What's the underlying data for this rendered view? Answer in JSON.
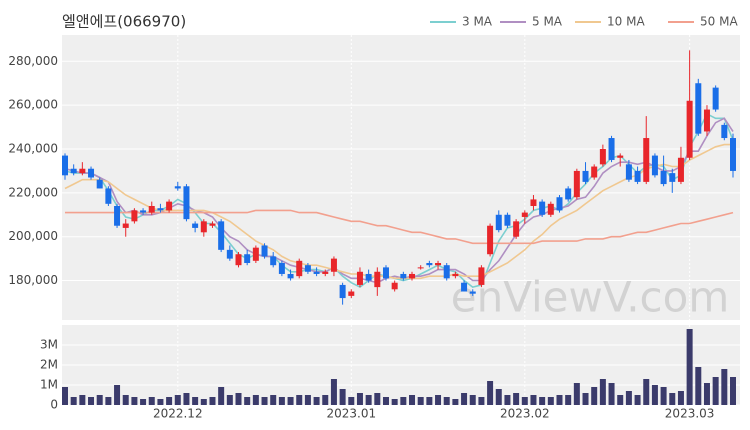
{
  "chart_data": {
    "type": "candlestick",
    "title": "엘앤에프(066970)",
    "watermark": "enViewV.com",
    "up_color": "#e8262b",
    "down_color": "#1a6ee8",
    "volume_color": "#3b3b6b",
    "grid": true,
    "categories": [
      null,
      null,
      null,
      null,
      null,
      null,
      null,
      null,
      null,
      null,
      null,
      null,
      null,
      "2022.12",
      null,
      null,
      null,
      null,
      null,
      null,
      null,
      null,
      null,
      null,
      null,
      null,
      null,
      null,
      null,
      null,
      null,
      null,
      null,
      "2023.01",
      null,
      null,
      null,
      null,
      null,
      null,
      null,
      null,
      null,
      null,
      null,
      null,
      null,
      null,
      null,
      null,
      null,
      null,
      null,
      "2023.02",
      null,
      null,
      null,
      null,
      null,
      null,
      null,
      null,
      null,
      null,
      null,
      null,
      null,
      null,
      null,
      null,
      null,
      null,
      "2023.03",
      null,
      null,
      null,
      null,
      null
    ],
    "open": [
      237000,
      231000,
      229000,
      231000,
      226000,
      222000,
      214000,
      204000,
      207000,
      212000,
      211000,
      213000,
      212000,
      223000,
      223000,
      206000,
      202000,
      205000,
      207000,
      194000,
      187000,
      192000,
      189000,
      196000,
      191000,
      188000,
      183000,
      182000,
      187000,
      184000,
      183000,
      184000,
      178000,
      173000,
      178000,
      183000,
      177000,
      186000,
      176000,
      183000,
      181000,
      186000,
      188000,
      187000,
      187000,
      182000,
      179000,
      175000,
      178000,
      192000,
      210000,
      210000,
      200000,
      209000,
      214000,
      216000,
      210000,
      218000,
      222000,
      218000,
      230000,
      227000,
      233000,
      245000,
      236000,
      233000,
      230000,
      225000,
      237000,
      230000,
      229000,
      225000,
      236000,
      270000,
      248000,
      268000,
      251000,
      245000
    ],
    "high": [
      238000,
      233000,
      234000,
      232000,
      227000,
      223000,
      215000,
      208000,
      213000,
      213000,
      216000,
      215000,
      217000,
      225000,
      224000,
      207000,
      208000,
      207000,
      208000,
      196000,
      193000,
      194000,
      196000,
      197000,
      193000,
      189000,
      185000,
      190000,
      188000,
      186000,
      185000,
      191000,
      179000,
      176000,
      186000,
      185000,
      186000,
      187000,
      180000,
      184000,
      184000,
      187000,
      189000,
      189000,
      188000,
      184000,
      180000,
      176000,
      187000,
      206000,
      212000,
      211000,
      208000,
      212000,
      219000,
      217000,
      216000,
      219000,
      223000,
      231000,
      234000,
      233000,
      242000,
      246000,
      238000,
      235000,
      232000,
      255000,
      238000,
      237000,
      231000,
      241000,
      285000,
      272000,
      260000,
      269000,
      252000,
      247000
    ],
    "low": [
      226000,
      228000,
      228000,
      226000,
      222000,
      214000,
      204000,
      200000,
      206000,
      210000,
      210000,
      211000,
      211000,
      221000,
      207000,
      202000,
      200000,
      204000,
      193000,
      189000,
      186000,
      187000,
      188000,
      190000,
      186000,
      182000,
      180000,
      181000,
      183000,
      182000,
      182000,
      182000,
      169000,
      172000,
      177000,
      179000,
      173000,
      180000,
      175000,
      180000,
      180000,
      185000,
      186000,
      185000,
      180000,
      181000,
      175000,
      173000,
      177000,
      191000,
      202000,
      204000,
      199000,
      206000,
      212000,
      209000,
      209000,
      211000,
      216000,
      217000,
      224000,
      226000,
      232000,
      234000,
      232000,
      225000,
      224000,
      224000,
      227000,
      223000,
      220000,
      224000,
      235000,
      246000,
      246000,
      257000,
      244000,
      227000
    ],
    "close": [
      228000,
      229000,
      231000,
      227000,
      222000,
      215000,
      205000,
      206000,
      212000,
      211000,
      214000,
      212000,
      216000,
      222000,
      208000,
      204000,
      207000,
      206000,
      194000,
      190000,
      192000,
      188000,
      195000,
      191000,
      187000,
      183000,
      181000,
      189000,
      184000,
      183000,
      184000,
      190000,
      172000,
      175000,
      184000,
      180000,
      184000,
      181000,
      179000,
      181000,
      183000,
      186000,
      187000,
      188000,
      181000,
      183000,
      175000,
      174000,
      186000,
      205000,
      203000,
      205000,
      207000,
      211000,
      217000,
      210000,
      215000,
      212000,
      217000,
      230000,
      225000,
      232000,
      240000,
      235000,
      237000,
      226000,
      225000,
      245000,
      228000,
      224000,
      225000,
      236000,
      262000,
      247000,
      258000,
      258000,
      245000,
      230000
    ],
    "volume": [
      900000,
      400000,
      500000,
      400000,
      500000,
      400000,
      1000000,
      500000,
      400000,
      300000,
      400000,
      300000,
      400000,
      500000,
      600000,
      400000,
      300000,
      400000,
      900000,
      500000,
      600000,
      400000,
      500000,
      400000,
      500000,
      400000,
      400000,
      500000,
      500000,
      400000,
      500000,
      1300000,
      800000,
      400000,
      600000,
      500000,
      600000,
      400000,
      300000,
      400000,
      500000,
      400000,
      400000,
      500000,
      400000,
      300000,
      600000,
      500000,
      400000,
      1200000,
      800000,
      500000,
      600000,
      400000,
      500000,
      400000,
      400000,
      500000,
      500000,
      1100000,
      600000,
      900000,
      1300000,
      1100000,
      500000,
      700000,
      500000,
      1300000,
      1000000,
      900000,
      600000,
      700000,
      3800000,
      1900000,
      1100000,
      1400000,
      1800000,
      1400000
    ],
    "moving_averages": [
      {
        "name": "3 MA",
        "color": "#7ccfd0",
        "values": [
          230000,
          229000,
          229000,
          229000,
          227000,
          221000,
          214000,
          209000,
          208000,
          210000,
          212000,
          212000,
          214000,
          217000,
          215000,
          211000,
          206000,
          206000,
          202000,
          197000,
          192000,
          190000,
          192000,
          191000,
          191000,
          187000,
          184000,
          184000,
          185000,
          185000,
          184000,
          186000,
          182000,
          179000,
          177000,
          180000,
          183000,
          182000,
          181000,
          180000,
          181000,
          183000,
          185000,
          187000,
          185000,
          184000,
          180000,
          177000,
          178000,
          188000,
          198000,
          204000,
          205000,
          208000,
          212000,
          213000,
          214000,
          212000,
          215000,
          220000,
          224000,
          229000,
          232000,
          236000,
          237000,
          233000,
          229000,
          232000,
          233000,
          232000,
          226000,
          228000,
          241000,
          248000,
          256000,
          254000,
          254000,
          244000
        ]
      },
      {
        "name": "5 MA",
        "color": "#b08fc2",
        "values": [
          231000,
          230000,
          229000,
          229000,
          227000,
          225000,
          216000,
          211000,
          212000,
          210000,
          210000,
          211000,
          213000,
          215000,
          214000,
          212000,
          211000,
          209000,
          204000,
          200000,
          198000,
          194000,
          192000,
          191000,
          191000,
          189000,
          187000,
          186000,
          185000,
          184000,
          184000,
          186000,
          183000,
          181000,
          181000,
          180000,
          179000,
          181000,
          182000,
          181000,
          182000,
          182000,
          183000,
          185000,
          185000,
          185000,
          183000,
          180000,
          180000,
          185000,
          189000,
          195000,
          201000,
          206000,
          209000,
          210000,
          212000,
          213000,
          214000,
          217000,
          218000,
          223000,
          229000,
          232000,
          234000,
          234000,
          233000,
          234000,
          232000,
          230000,
          230000,
          232000,
          239000,
          239000,
          246000,
          252000,
          254000,
          248000
        ]
      },
      {
        "name": "10 MA",
        "color": "#f0c890",
        "values": [
          222000,
          224000,
          226000,
          226000,
          226000,
          225000,
          222000,
          219000,
          217000,
          215000,
          213000,
          212000,
          212000,
          212000,
          212000,
          212000,
          212000,
          211000,
          209000,
          207000,
          204000,
          201000,
          198000,
          196000,
          194000,
          191000,
          189000,
          188000,
          187000,
          187000,
          186000,
          185000,
          184000,
          183000,
          183000,
          182000,
          182000,
          182000,
          181000,
          181000,
          181000,
          181000,
          182000,
          182000,
          182000,
          183000,
          182000,
          182000,
          182000,
          184000,
          186000,
          188000,
          191000,
          194000,
          198000,
          201000,
          205000,
          208000,
          210000,
          212000,
          215000,
          218000,
          221000,
          223000,
          225000,
          227000,
          228000,
          231000,
          232000,
          233000,
          232000,
          232000,
          235000,
          237000,
          239000,
          241000,
          242000,
          242000
        ]
      },
      {
        "name": "50 MA",
        "color": "#f2a08e",
        "values": [
          211000,
          211000,
          211000,
          211000,
          211000,
          211000,
          211000,
          211000,
          211000,
          211000,
          211000,
          211000,
          211000,
          211000,
          211000,
          211000,
          211000,
          211000,
          211000,
          211000,
          211000,
          211000,
          212000,
          212000,
          212000,
          212000,
          212000,
          211000,
          211000,
          211000,
          210000,
          209000,
          208000,
          207000,
          207000,
          206000,
          205000,
          205000,
          204000,
          203000,
          202000,
          202000,
          201000,
          200000,
          199000,
          199000,
          198000,
          197000,
          197000,
          197000,
          197000,
          197000,
          197000,
          197000,
          197000,
          198000,
          198000,
          198000,
          198000,
          198000,
          199000,
          199000,
          199000,
          200000,
          200000,
          201000,
          202000,
          202000,
          203000,
          204000,
          205000,
          206000,
          206000,
          207000,
          208000,
          209000,
          210000,
          211000
        ]
      }
    ],
    "ylim": [
      162000,
      292000
    ],
    "yticks": [
      {
        "value": 180000,
        "label": "180,000"
      },
      {
        "value": 200000,
        "label": "200,000"
      },
      {
        "value": 220000,
        "label": "220,000"
      },
      {
        "value": 240000,
        "label": "240,000"
      },
      {
        "value": 260000,
        "label": "260,000"
      },
      {
        "value": 280000,
        "label": "280,000"
      }
    ],
    "volume_ylim": [
      0,
      4000000
    ],
    "volume_yticks": [
      0,
      {
        "value": 1000000,
        "label": "1M"
      },
      {
        "value": 2000000,
        "label": "2M"
      },
      {
        "value": 3000000,
        "label": "3M"
      }
    ]
  }
}
